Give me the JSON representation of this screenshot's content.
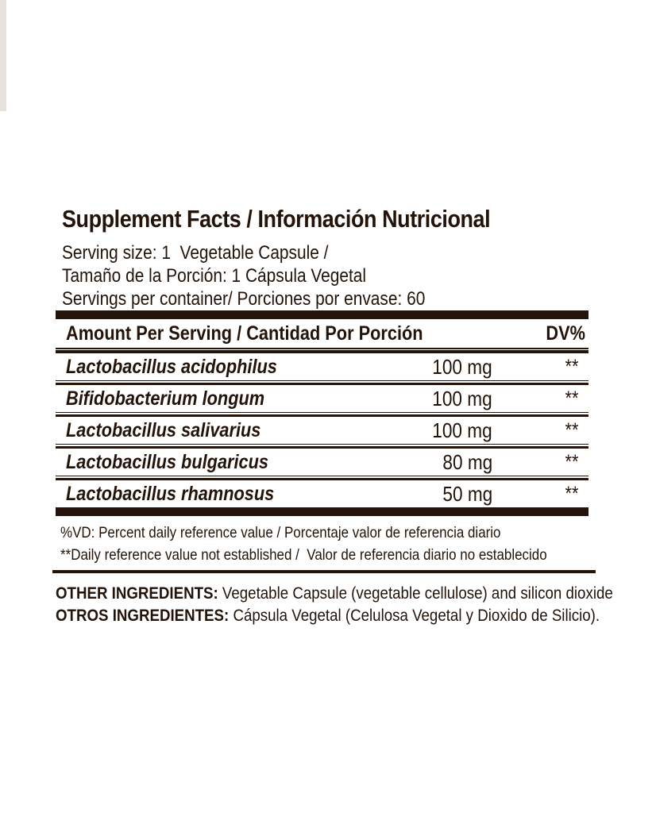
{
  "colors": {
    "ink": "#231309",
    "paper": "#ffffff",
    "edge_strip": "#e6e3df"
  },
  "label": {
    "title": "Supplement Facts / Información Nutricional",
    "serving_lines": [
      "Serving size: 1  Vegetable Capsule /",
      "Tamaño de la Porción: 1 Cápsula Vegetal",
      "Servings per container/ Porciones por envase: 60"
    ],
    "table": {
      "header": {
        "amount_label": "Amount Per Serving / Cantidad Por Porción",
        "dv_label": "DV%"
      },
      "rows": [
        {
          "name": "Lactobacillus acidophilus",
          "amount": "100 mg",
          "dv": "**"
        },
        {
          "name": "Bifidobacterium longum",
          "amount": "100 mg",
          "dv": "**"
        },
        {
          "name": "Lactobacillus salivarius",
          "amount": "100 mg",
          "dv": "**"
        },
        {
          "name": "Lactobacillus bulgaricus",
          "amount": "80 mg",
          "dv": "**"
        },
        {
          "name": "Lactobacillus rhamnosus",
          "amount": "50 mg",
          "dv": "**"
        }
      ]
    },
    "footnotes": [
      "%VD: Percent daily reference value / Porcentaje valor de referencia diario",
      "**Daily reference value not established /  Valor de referencia diario no establecido"
    ],
    "other_ingredients": [
      {
        "label": "OTHER INGREDIENTS:",
        "text": " Vegetable Capsule (vegetable cellulose) and silicon dioxide"
      },
      {
        "label": "OTROS INGREDIENTES:",
        "text": " Cápsula Vegetal (Celulosa Vegetal y Dioxido de Silicio)."
      }
    ]
  }
}
